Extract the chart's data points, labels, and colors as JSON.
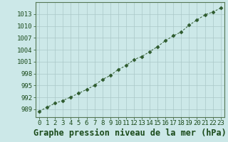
{
  "x": [
    0,
    1,
    2,
    3,
    4,
    5,
    6,
    7,
    8,
    9,
    10,
    11,
    12,
    13,
    14,
    15,
    16,
    17,
    18,
    19,
    20,
    21,
    22,
    23
  ],
  "y": [
    988.5,
    989.5,
    990.5,
    991.2,
    992.1,
    993.0,
    994.0,
    995.0,
    996.5,
    997.5,
    999.0,
    1000.0,
    1001.5,
    1002.3,
    1003.5,
    1004.8,
    1006.3,
    1007.5,
    1008.5,
    1010.2,
    1011.5,
    1012.8,
    1013.5,
    1014.5
  ],
  "line_color": "#2d5a2d",
  "marker": "D",
  "marker_size": 2.5,
  "bg_color": "#cce8e8",
  "grid_color": "#aac8c8",
  "title": "Graphe pression niveau de la mer (hPa)",
  "yticks": [
    989,
    992,
    995,
    998,
    1001,
    1004,
    1007,
    1010,
    1013
  ],
  "xticks": [
    0,
    1,
    2,
    3,
    4,
    5,
    6,
    7,
    8,
    9,
    10,
    11,
    12,
    13,
    14,
    15,
    16,
    17,
    18,
    19,
    20,
    21,
    22,
    23
  ],
  "ylim": [
    987.0,
    1016.0
  ],
  "xlim": [
    -0.5,
    23.5
  ],
  "title_fontsize": 8.5,
  "tick_fontsize": 6.5,
  "title_color": "#1a4a1a",
  "tick_color": "#1a4a1a"
}
